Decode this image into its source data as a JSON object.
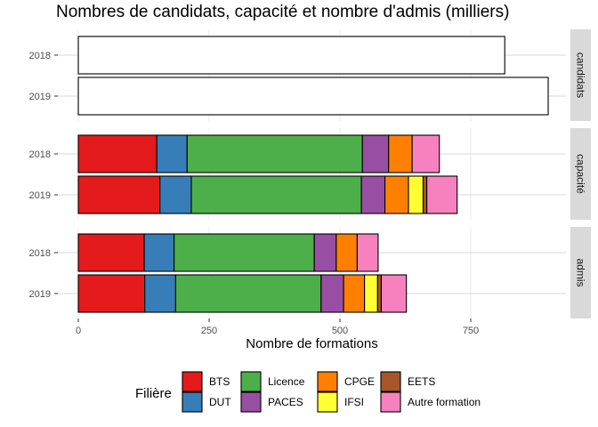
{
  "chart_data": {
    "type": "bar",
    "orientation": "horizontal",
    "stacked": true,
    "title": "Nombres de candidats, capacité et nombre d'admis (milliers)",
    "xlabel": "Nombre de formations",
    "ylabel": "",
    "xlim": [
      0,
      900
    ],
    "x_ticks": [
      0,
      250,
      500,
      750
    ],
    "x_tick_labels": [
      "0",
      "250",
      "500",
      "750"
    ],
    "grid": true,
    "legend": {
      "title": "Filière",
      "position": "bottom",
      "entries": [
        {
          "name": "BTS",
          "color": "#E41A1C"
        },
        {
          "name": "DUT",
          "color": "#377EB8"
        },
        {
          "name": "Licence",
          "color": "#4DAF4A"
        },
        {
          "name": "PACES",
          "color": "#984EA3"
        },
        {
          "name": "CPGE",
          "color": "#FF7F00"
        },
        {
          "name": "IFSI",
          "color": "#FFFF33"
        },
        {
          "name": "EETS",
          "color": "#A65628"
        },
        {
          "name": "Autre formation",
          "color": "#F781BF"
        }
      ]
    },
    "facets": [
      {
        "name": "candidats",
        "rows": [
          {
            "year": "2018",
            "segments": [
              {
                "name": "total",
                "value": 815,
                "color": "#FFFFFF"
              }
            ]
          },
          {
            "year": "2019",
            "segments": [
              {
                "name": "total",
                "value": 898,
                "color": "#FFFFFF"
              }
            ]
          }
        ]
      },
      {
        "name": "capacité",
        "rows": [
          {
            "year": "2018",
            "segments": [
              {
                "name": "BTS",
                "value": 150
              },
              {
                "name": "DUT",
                "value": 58
              },
              {
                "name": "Licence",
                "value": 335
              },
              {
                "name": "PACES",
                "value": 50
              },
              {
                "name": "CPGE",
                "value": 45
              },
              {
                "name": "Autre formation",
                "value": 52
              }
            ]
          },
          {
            "year": "2019",
            "segments": [
              {
                "name": "BTS",
                "value": 156
              },
              {
                "name": "DUT",
                "value": 60
              },
              {
                "name": "Licence",
                "value": 325
              },
              {
                "name": "PACES",
                "value": 45
              },
              {
                "name": "CPGE",
                "value": 45
              },
              {
                "name": "IFSI",
                "value": 28
              },
              {
                "name": "EETS",
                "value": 7
              },
              {
                "name": "Autre formation",
                "value": 58
              }
            ]
          }
        ]
      },
      {
        "name": "admis",
        "rows": [
          {
            "year": "2018",
            "segments": [
              {
                "name": "BTS",
                "value": 126
              },
              {
                "name": "DUT",
                "value": 57
              },
              {
                "name": "Licence",
                "value": 268
              },
              {
                "name": "PACES",
                "value": 42
              },
              {
                "name": "CPGE",
                "value": 40
              },
              {
                "name": "Autre formation",
                "value": 40
              }
            ]
          },
          {
            "year": "2019",
            "segments": [
              {
                "name": "BTS",
                "value": 127
              },
              {
                "name": "DUT",
                "value": 59
              },
              {
                "name": "Licence",
                "value": 278
              },
              {
                "name": "PACES",
                "value": 43
              },
              {
                "name": "CPGE",
                "value": 40
              },
              {
                "name": "IFSI",
                "value": 25
              },
              {
                "name": "EETS",
                "value": 7
              },
              {
                "name": "Autre formation",
                "value": 48
              }
            ]
          }
        ]
      }
    ]
  }
}
